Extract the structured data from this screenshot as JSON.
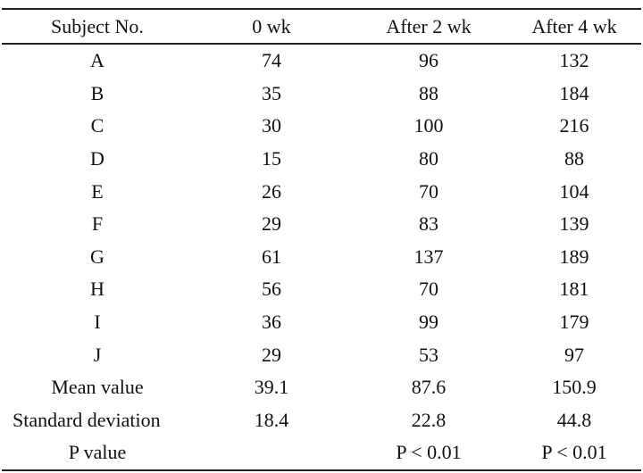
{
  "table": {
    "headers": [
      "Subject No.",
      "0 wk",
      "After 2 wk",
      "After 4 wk"
    ],
    "rows": [
      [
        "A",
        "74",
        "96",
        "132"
      ],
      [
        "B",
        "35",
        "88",
        "184"
      ],
      [
        "C",
        "30",
        "100",
        "216"
      ],
      [
        "D",
        "15",
        "80",
        "88"
      ],
      [
        "E",
        "26",
        "70",
        "104"
      ],
      [
        "F",
        "29",
        "83",
        "139"
      ],
      [
        "G",
        "61",
        "137",
        "189"
      ],
      [
        "H",
        "56",
        "70",
        "181"
      ],
      [
        "I",
        "36",
        "99",
        "179"
      ],
      [
        "J",
        "29",
        "53",
        "97"
      ],
      [
        "Mean value",
        "39.1",
        "87.6",
        "150.9"
      ],
      [
        "Standard deviation",
        "18.4",
        "22.8",
        "44.8"
      ],
      [
        "P value",
        "",
        "P < 0.01",
        "P < 0.01"
      ]
    ]
  }
}
